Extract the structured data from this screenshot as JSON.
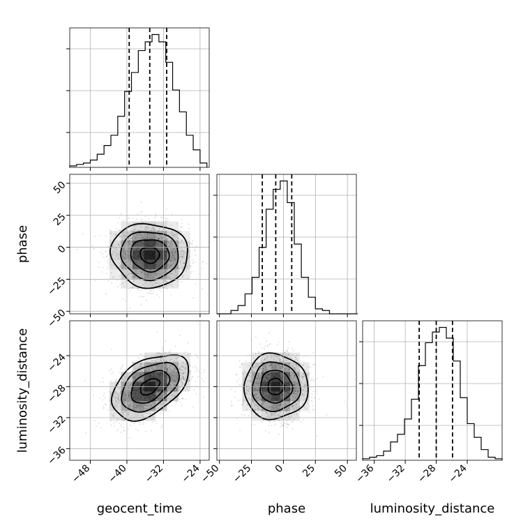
{
  "chart_data": {
    "type": "corner",
    "parameters": [
      "geocent_time",
      "phase",
      "luminosity_distance"
    ],
    "xlabels": [
      "geocent_time",
      "phase",
      "luminosity_distance"
    ],
    "ylabels": [
      "",
      "phase",
      "luminosity_distance"
    ],
    "ranges": {
      "geocent_time": [
        -52.5,
        -22
      ],
      "phase": [
        -52,
        57
      ],
      "luminosity_distance": [
        -37.5,
        -19.5
      ]
    },
    "ticks": {
      "geocent_time": [
        -48,
        -40,
        -32,
        -24
      ],
      "phase": [
        -50,
        -25,
        0,
        25,
        50
      ],
      "luminosity_distance": [
        -36,
        -32,
        -28,
        -24
      ]
    },
    "tick_labels": {
      "geocent_time": [
        "−48",
        "−40",
        "−32",
        "−24"
      ],
      "phase": [
        "−50",
        "−25",
        "0",
        "25",
        "50"
      ],
      "luminosity_distance": [
        "−36",
        "−32",
        "−28",
        "−24"
      ]
    },
    "quantiles": {
      "geocent_time": [
        -39.5,
        -35.0,
        -31.3
      ],
      "phase": [
        -16.5,
        -6.0,
        6.5
      ],
      "luminosity_distance": [
        -30.2,
        -28.0,
        -25.9
      ]
    },
    "histograms": {
      "geocent_time": {
        "edges": [
          -52.5,
          -51.0,
          -49.5,
          -48.0,
          -46.5,
          -45.0,
          -43.5,
          -42.0,
          -40.5,
          -39.0,
          -37.5,
          -36.0,
          -34.5,
          -33.0,
          -31.5,
          -30.0,
          -28.5,
          -27.0,
          -25.5,
          -24.0,
          -22.5
        ],
        "counts": [
          1,
          2,
          3,
          5,
          9,
          15,
          22,
          35,
          52,
          65,
          80,
          86,
          91,
          86,
          72,
          53,
          38,
          22,
          12,
          3
        ]
      },
      "phase": {
        "edges": [
          -52,
          -46.5,
          -41,
          -35.5,
          -30,
          -24.5,
          -19,
          -13.5,
          -8,
          -2.5,
          3,
          8.5,
          14,
          19.5,
          25,
          30.5,
          36,
          41.5,
          47,
          52.5,
          58
        ],
        "counts": [
          0,
          0,
          2,
          5,
          12,
          22,
          40,
          63,
          75,
          80,
          67,
          42,
          22,
          10,
          3,
          2,
          0,
          0,
          0,
          0
        ]
      },
      "luminosity_distance": {
        "edges": [
          -37.5,
          -36.6,
          -35.7,
          -34.8,
          -33.9,
          -33.0,
          -32.1,
          -31.2,
          -30.3,
          -29.4,
          -28.5,
          -27.6,
          -26.7,
          -25.8,
          -24.9,
          -24.0,
          -23.1,
          -22.2,
          -21.3,
          -20.4,
          -19.5
        ],
        "counts": [
          1,
          2,
          3,
          6,
          12,
          17,
          27,
          40,
          62,
          77,
          84,
          87,
          80,
          65,
          41,
          24,
          15,
          7,
          2,
          1
        ]
      }
    },
    "joint": [
      {
        "x": "geocent_time",
        "y": "phase",
        "mean": [
          -35,
          -6
        ],
        "sd": [
          4.2,
          12.5
        ],
        "rho": -0.05
      },
      {
        "x": "geocent_time",
        "y": "luminosity_distance",
        "mean": [
          -35,
          -28
        ],
        "sd": [
          4.2,
          2.1
        ],
        "rho": 0.45
      },
      {
        "x": "phase",
        "y": "luminosity_distance",
        "mean": [
          -6,
          -28
        ],
        "sd": [
          12.5,
          2.1
        ],
        "rho": 0.0
      }
    ],
    "contour_levels": [
      0.5,
      1.0,
      1.5,
      2.0
    ],
    "scatter_color": "#000000",
    "line_color": "#000000",
    "quantile_style": "dashed",
    "grid": true
  }
}
